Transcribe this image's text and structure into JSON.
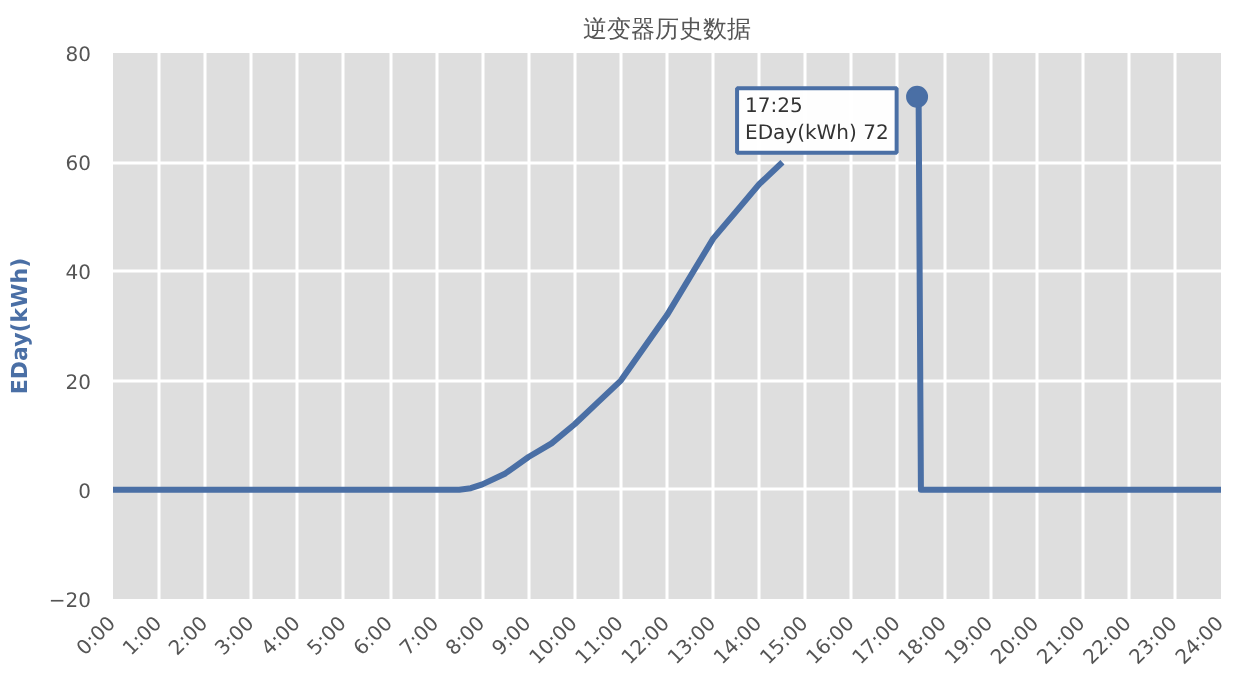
{
  "chart_data": {
    "type": "line",
    "title": "逆变器历史数据",
    "ylabel": "EDay(kWh)",
    "x": [
      0,
      7,
      7.5,
      7.75,
      8,
      8.5,
      9,
      9.5,
      10,
      10.5,
      11,
      11.5,
      12,
      12.5,
      13,
      13.5,
      14,
      14.5,
      15,
      15.5,
      16,
      16.5,
      17,
      17.4167,
      17.45,
      17.5,
      24
    ],
    "series": [
      {
        "color": "#4a6fa5",
        "values": [
          0,
          0,
          0,
          0.3,
          1,
          3,
          6,
          8.5,
          12,
          16,
          20,
          26,
          32,
          39,
          46,
          51,
          56,
          60,
          null,
          null,
          null,
          null,
          null,
          72,
          72,
          0,
          0
        ]
      }
    ],
    "xlim": [
      0,
      24
    ],
    "xticks": [
      {
        "value": 0,
        "label": "0:00"
      },
      {
        "value": 1,
        "label": "1:00"
      },
      {
        "value": 2,
        "label": "2:00"
      },
      {
        "value": 3,
        "label": "3:00"
      },
      {
        "value": 4,
        "label": "4:00"
      },
      {
        "value": 5,
        "label": "5:00"
      },
      {
        "value": 6,
        "label": "6:00"
      },
      {
        "value": 7,
        "label": "7:00"
      },
      {
        "value": 8,
        "label": "8:00"
      },
      {
        "value": 9,
        "label": "9:00"
      },
      {
        "value": 10,
        "label": "10:00"
      },
      {
        "value": 11,
        "label": "11:00"
      },
      {
        "value": 12,
        "label": "12:00"
      },
      {
        "value": 13,
        "label": "13:00"
      },
      {
        "value": 14,
        "label": "14:00"
      },
      {
        "value": 15,
        "label": "15:00"
      },
      {
        "value": 16,
        "label": "16:00"
      },
      {
        "value": 17,
        "label": "17:00"
      },
      {
        "value": 18,
        "label": "18:00"
      },
      {
        "value": 19,
        "label": "19:00"
      },
      {
        "value": 20,
        "label": "20:00"
      },
      {
        "value": 21,
        "label": "21:00"
      },
      {
        "value": 22,
        "label": "22:00"
      },
      {
        "value": 23,
        "label": "23:00"
      },
      {
        "value": 24,
        "label": "24:00"
      }
    ],
    "ylim": [
      -20,
      80
    ],
    "yticks": [
      -20,
      0,
      20,
      40,
      60,
      80
    ],
    "annotations": [
      {
        "text": "17:25\nEDay(kWh) 72",
        "x": 17.4167,
        "y": 72
      }
    ],
    "grid": true,
    "marker": "none",
    "line_style": "solid"
  }
}
